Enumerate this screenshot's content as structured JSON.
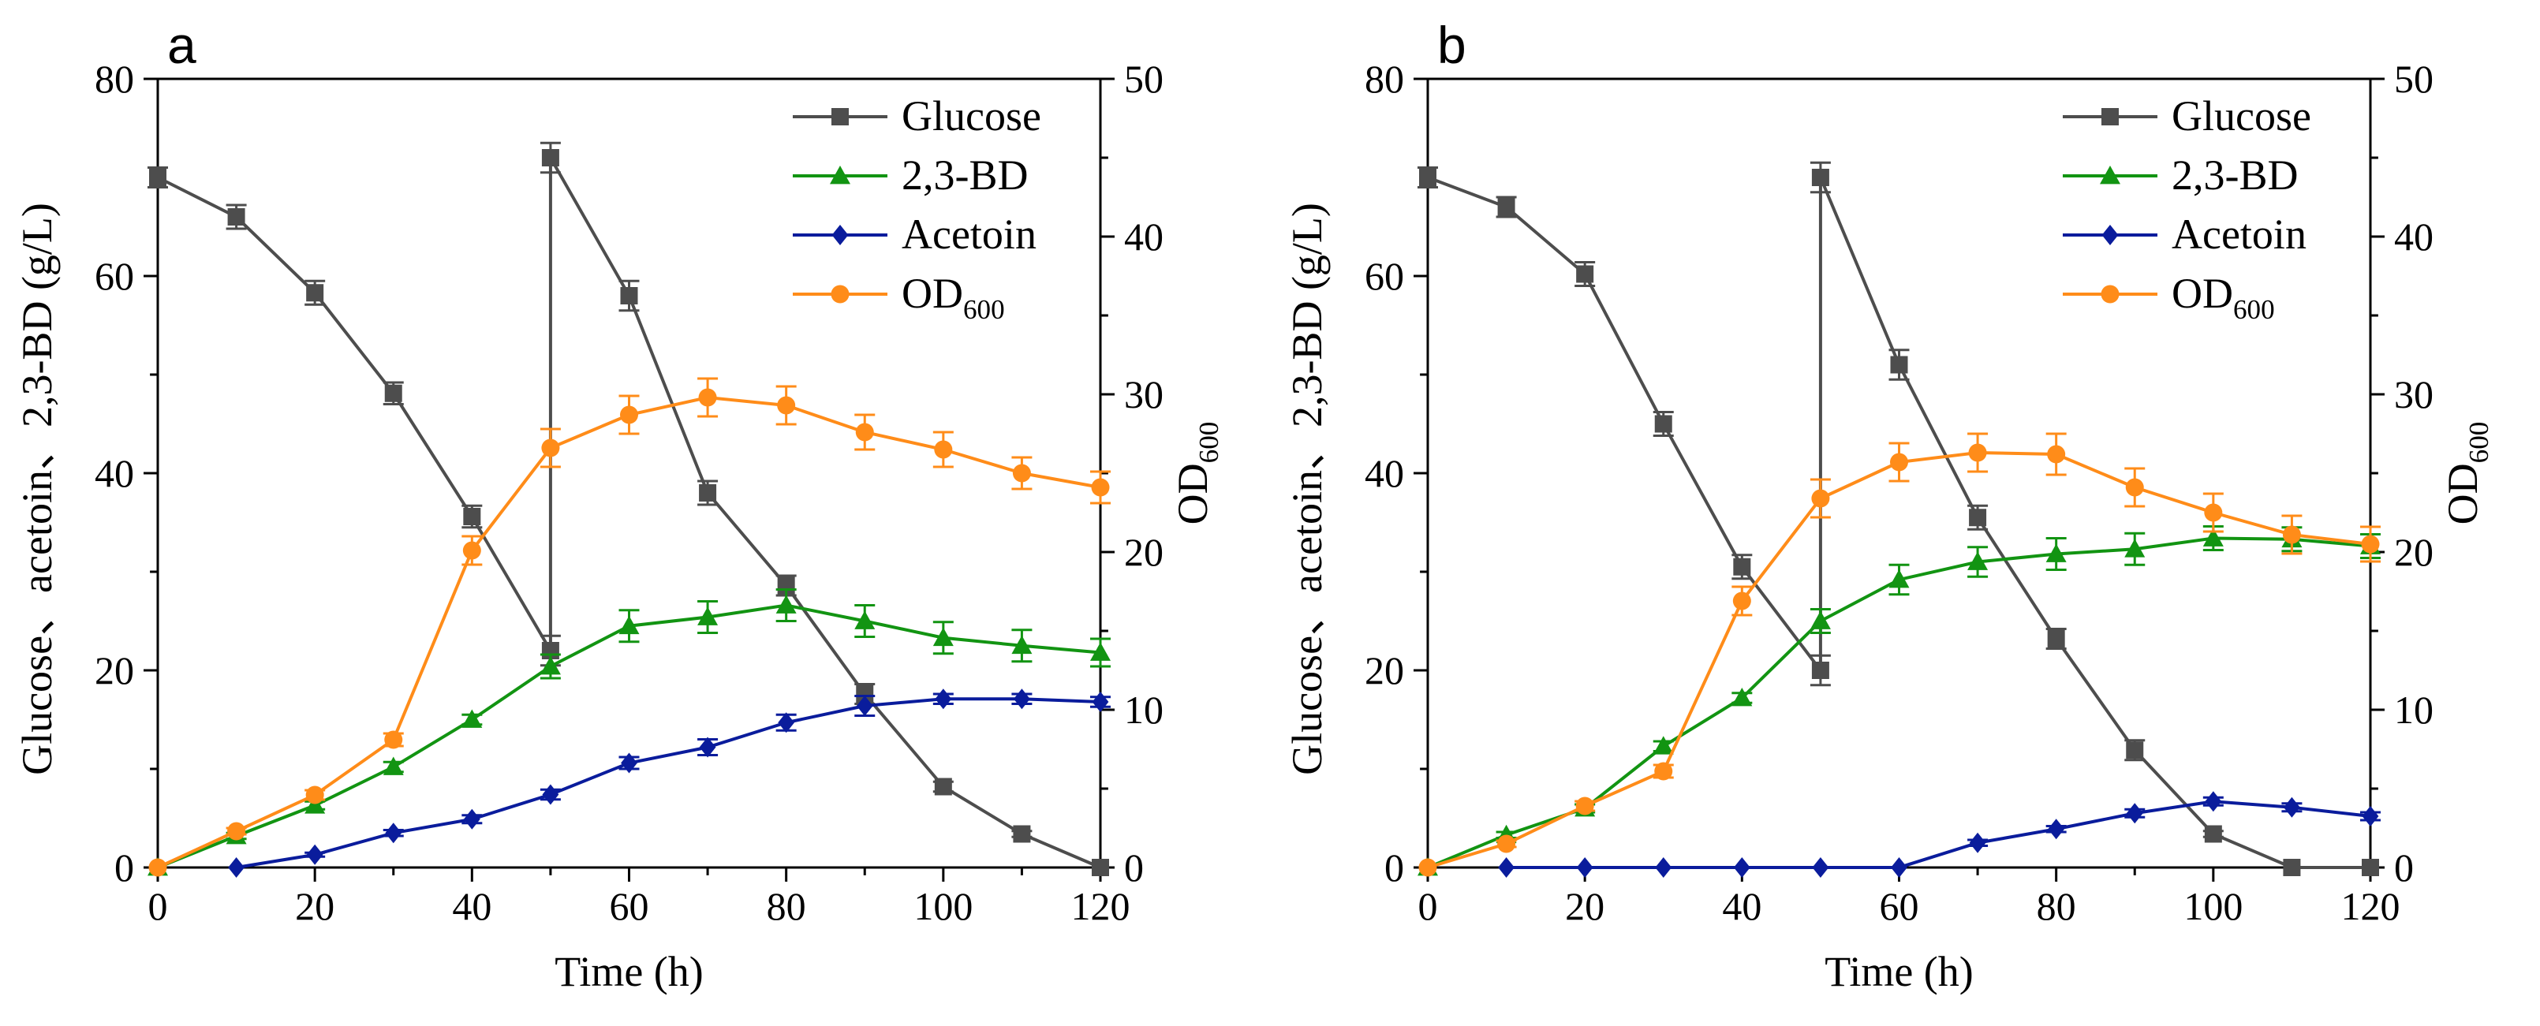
{
  "colors": {
    "axis": "#000000",
    "glucose": "#4d4d4d",
    "bd": "#129412",
    "acetoin": "#0a1c9c",
    "od": "#ff8c19"
  },
  "chart_data": [
    {
      "type": "line",
      "panel_label": "a",
      "xlabel": "Time (h)",
      "ylabel": "Glucose、acetoin、2,3-BD (g/L)",
      "y2label_main": "OD",
      "y2label_sub": "600",
      "xlim": [
        0,
        120
      ],
      "ylim": [
        0,
        80
      ],
      "y2lim": [
        0,
        50
      ],
      "xticks": [
        "0",
        "20",
        "40",
        "60",
        "80",
        "100",
        "120"
      ],
      "yticks": [
        "0",
        "20",
        "40",
        "60",
        "80"
      ],
      "y2ticks": [
        "0",
        "10",
        "20",
        "30",
        "40",
        "50"
      ],
      "legend": {
        "position": "top-right",
        "entries": [
          {
            "label": "Glucose"
          },
          {
            "label": "2,3-BD"
          },
          {
            "label": "Acetoin"
          },
          {
            "label": "OD",
            "sub": "600"
          }
        ]
      },
      "series": [
        {
          "name": "Glucose",
          "marker": "square",
          "color_key": "glucose",
          "axis": "left",
          "x": [
            0,
            10,
            20,
            30,
            40,
            50,
            50,
            60,
            70,
            80,
            90,
            100,
            110,
            120
          ],
          "y": [
            70,
            66,
            58.3,
            48.1,
            35.6,
            22,
            72,
            58,
            38,
            28.6,
            17.6,
            8.2,
            3.4,
            0
          ],
          "err": [
            1,
            1.2,
            1.2,
            1.1,
            1.1,
            1.5,
            1.5,
            1.5,
            1.2,
            1,
            1,
            0.5,
            0.3,
            0
          ]
        },
        {
          "name": "2,3-BD",
          "marker": "triangle",
          "color_key": "bd",
          "axis": "left",
          "x": [
            0,
            10,
            20,
            30,
            40,
            50,
            60,
            70,
            80,
            90,
            100,
            110,
            120
          ],
          "y": [
            0,
            3.2,
            6.3,
            10.2,
            15,
            20.4,
            24.5,
            25.4,
            26.6,
            25,
            23.3,
            22.5,
            21.8
          ],
          "err": [
            0,
            0.3,
            0.4,
            0.5,
            0.5,
            1.2,
            1.6,
            1.6,
            1.6,
            1.6,
            1.6,
            1.6,
            1.4
          ]
        },
        {
          "name": "Acetoin",
          "marker": "diamond",
          "color_key": "acetoin",
          "axis": "left",
          "x": [
            10,
            20,
            30,
            40,
            50,
            60,
            70,
            80,
            90,
            100,
            110,
            120
          ],
          "y": [
            0,
            1.3,
            3.5,
            4.9,
            7.4,
            10.6,
            12.2,
            14.7,
            16.4,
            17.1,
            17.1,
            16.8
          ],
          "err": [
            0,
            0.2,
            0.3,
            0.4,
            0.5,
            0.6,
            0.8,
            0.8,
            1,
            0.5,
            0.5,
            0.5
          ]
        },
        {
          "name": "OD600",
          "marker": "circle",
          "color_key": "od",
          "axis": "right",
          "x": [
            0,
            10,
            20,
            30,
            40,
            50,
            60,
            70,
            80,
            90,
            100,
            110,
            120
          ],
          "y": [
            0,
            2.3,
            4.6,
            8.1,
            20.1,
            26.6,
            28.7,
            29.8,
            29.3,
            27.6,
            26.5,
            25,
            24.1
          ],
          "err": [
            0,
            0.2,
            0.3,
            0.4,
            0.9,
            1.2,
            1.2,
            1.2,
            1.2,
            1.1,
            1.1,
            1,
            1
          ]
        }
      ]
    },
    {
      "type": "line",
      "panel_label": "b",
      "xlabel": "Time (h)",
      "ylabel": "Glucose、acetoin、2,3-BD (g/L)",
      "y2label_main": "OD",
      "y2label_sub": "600",
      "xlim": [
        0,
        120
      ],
      "ylim": [
        0,
        80
      ],
      "y2lim": [
        0,
        50
      ],
      "xticks": [
        "0",
        "20",
        "40",
        "60",
        "80",
        "100",
        "120"
      ],
      "yticks": [
        "0",
        "20",
        "40",
        "60",
        "80"
      ],
      "y2ticks": [
        "0",
        "10",
        "20",
        "30",
        "40",
        "50"
      ],
      "legend": {
        "position": "top-right",
        "entries": [
          {
            "label": "Glucose"
          },
          {
            "label": "2,3-BD"
          },
          {
            "label": "Acetoin"
          },
          {
            "label": "OD",
            "sub": "600"
          }
        ]
      },
      "series": [
        {
          "name": "Glucose",
          "marker": "square",
          "color_key": "glucose",
          "axis": "left",
          "x": [
            0,
            10,
            20,
            30,
            40,
            50,
            50,
            60,
            70,
            80,
            90,
            100,
            110,
            120
          ],
          "y": [
            70,
            67,
            60.2,
            45,
            30.5,
            20,
            70,
            51,
            35.5,
            23.2,
            11.9,
            3.4,
            0,
            0
          ],
          "err": [
            1,
            1,
            1.2,
            1.2,
            1.2,
            1.5,
            1.5,
            1.5,
            1.2,
            1,
            1,
            0.3,
            0,
            0
          ]
        },
        {
          "name": "2,3-BD",
          "marker": "triangle",
          "color_key": "bd",
          "axis": "left",
          "x": [
            0,
            10,
            20,
            30,
            40,
            50,
            60,
            70,
            80,
            90,
            100,
            110,
            120
          ],
          "y": [
            0,
            3.3,
            6,
            12.3,
            17.2,
            25,
            29.2,
            31,
            31.8,
            32.3,
            33.4,
            33.3,
            32.6
          ],
          "err": [
            0,
            0.3,
            0.4,
            0.5,
            0.5,
            1.2,
            1.5,
            1.5,
            1.6,
            1.6,
            1.2,
            1.2,
            1.2
          ]
        },
        {
          "name": "Acetoin",
          "marker": "diamond",
          "color_key": "acetoin",
          "axis": "left",
          "x": [
            10,
            20,
            30,
            40,
            50,
            60,
            70,
            80,
            90,
            100,
            110,
            120
          ],
          "y": [
            0,
            0,
            0,
            0,
            0,
            0,
            2.5,
            3.9,
            5.5,
            6.7,
            6.1,
            5.2
          ],
          "err": [
            0,
            0,
            0,
            0,
            0,
            0,
            0.3,
            0.3,
            0.4,
            0.4,
            0.4,
            0.4
          ]
        },
        {
          "name": "OD600",
          "marker": "circle",
          "color_key": "od",
          "axis": "right",
          "x": [
            0,
            10,
            20,
            30,
            40,
            50,
            60,
            70,
            80,
            90,
            100,
            110,
            120
          ],
          "y": [
            0,
            1.5,
            3.9,
            6.1,
            16.9,
            23.4,
            25.7,
            26.3,
            26.2,
            24.1,
            22.5,
            21.1,
            20.5
          ],
          "err": [
            0,
            0.2,
            0.3,
            0.4,
            0.9,
            1.2,
            1.2,
            1.2,
            1.3,
            1.2,
            1.2,
            1.2,
            1.1
          ]
        }
      ]
    }
  ]
}
